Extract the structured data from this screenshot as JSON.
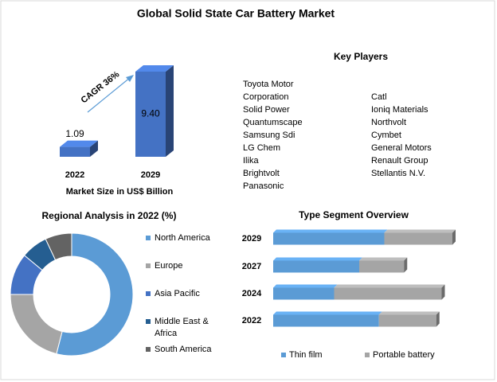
{
  "title": "Global Solid State Car Battery Market",
  "key_players": {
    "title": "Key Players",
    "left": [
      "Toyota Motor Corporation",
      "Solid Power",
      "Quantumscape",
      "Samsung Sdi",
      "LG Chem",
      "Ilika",
      "Brightvolt",
      "Panasonic"
    ],
    "right": [
      "Catl",
      "Ioniq Materials",
      "Northvolt",
      "Cymbet",
      "General Motors",
      "Renault Group",
      "Stellantis N.V."
    ]
  },
  "chart_data": [
    {
      "type": "bar",
      "categories": [
        "2022",
        "2029"
      ],
      "values": [
        1.09,
        9.4
      ],
      "value_labels": [
        "1.09",
        "9.40"
      ],
      "color": "#4472c4",
      "x_label": "Market Size in US$ Billion",
      "annotation": "CAGR 36%"
    },
    {
      "type": "pie",
      "title": "Regional Analysis in 2022 (%)",
      "donut": true,
      "categories": [
        "North America",
        "Europe",
        "Asia Pacific",
        "Middle East & Africa",
        "South America"
      ],
      "values": [
        54,
        21,
        11,
        7,
        7
      ],
      "colors": [
        "#5b9bd5",
        "#a5a5a5",
        "#4472c4",
        "#255e91",
        "#636363"
      ]
    },
    {
      "type": "bar",
      "title": "Type Segment Overview",
      "orientation": "horizontal",
      "stacked": true,
      "categories": [
        "2029",
        "2027",
        "2024",
        "2022"
      ],
      "series": [
        {
          "name": "Thin film",
          "color": "#5b9bd5",
          "values": [
            62,
            48,
            34,
            59
          ]
        },
        {
          "name": "Portable battery",
          "color": "#a5a5a5",
          "values": [
            38,
            25,
            60,
            32
          ]
        }
      ]
    }
  ]
}
